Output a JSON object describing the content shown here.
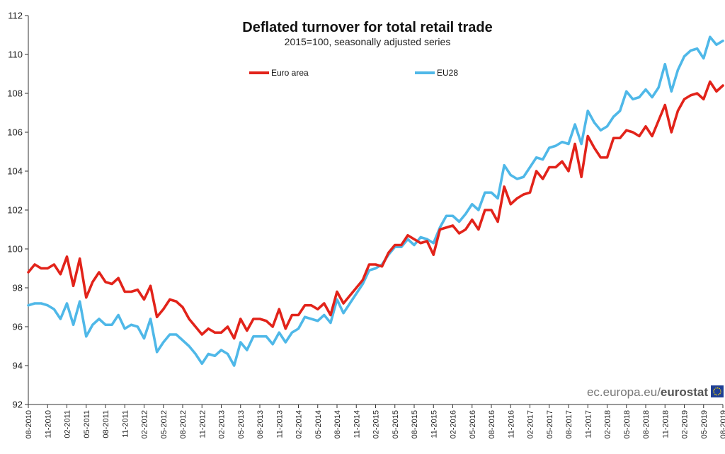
{
  "chart_data": {
    "type": "line",
    "title": "Deflated turnover for total retail trade",
    "subtitle": "2015=100, seasonally adjusted series",
    "ylim": [
      92,
      112
    ],
    "yticks": [
      92,
      94,
      96,
      98,
      100,
      102,
      104,
      106,
      108,
      110,
      112
    ],
    "grid": false,
    "legend_position": "top",
    "x_start": "08-2010",
    "x_end": "08-2019",
    "x_tick_labels": [
      "08-2010",
      "11-2010",
      "02-2011",
      "05-2011",
      "08-2011",
      "11-2011",
      "02-2012",
      "05-2012",
      "08-2012",
      "11-2012",
      "02-2013",
      "05-2013",
      "08-2013",
      "11-2013",
      "02-2014",
      "05-2014",
      "08-2014",
      "11-2014",
      "02-2015",
      "05-2015",
      "08-2015",
      "11-2015",
      "02-2016",
      "05-2016",
      "08-2016",
      "11-2016",
      "02-2017",
      "05-2017",
      "08-2017",
      "11-2017",
      "02-2018",
      "05-2018",
      "08-2018",
      "11-2018",
      "02-2019",
      "05-2019",
      "08-2019"
    ],
    "series": [
      {
        "name": "Euro area",
        "color": "#e2231a",
        "values": [
          98.8,
          99.2,
          99.0,
          99.0,
          99.2,
          98.7,
          99.6,
          98.1,
          99.5,
          97.5,
          98.3,
          98.8,
          98.3,
          98.2,
          98.5,
          97.8,
          97.8,
          97.9,
          97.4,
          98.1,
          96.5,
          96.9,
          97.4,
          97.3,
          97.0,
          96.4,
          96.0,
          95.6,
          95.9,
          95.7,
          95.7,
          96.0,
          95.4,
          96.4,
          95.8,
          96.4,
          96.4,
          96.3,
          96.0,
          96.9,
          95.9,
          96.6,
          96.6,
          97.1,
          97.1,
          96.9,
          97.2,
          96.6,
          97.8,
          97.2,
          97.6,
          98.0,
          98.4,
          99.2,
          99.2,
          99.1,
          99.8,
          100.2,
          100.2,
          100.7,
          100.5,
          100.3,
          100.4,
          99.7,
          101.0,
          101.1,
          101.2,
          100.8,
          101.0,
          101.5,
          101.0,
          102.0,
          102.0,
          101.4,
          103.2,
          102.3,
          102.6,
          102.8,
          102.9,
          104.0,
          103.6,
          104.2,
          104.2,
          104.5,
          104.0,
          105.4,
          103.7,
          105.8,
          105.2,
          104.7,
          104.7,
          105.7,
          105.7,
          106.1,
          106.0,
          105.8,
          106.3,
          105.8,
          106.6,
          107.4,
          106.0,
          107.1,
          107.7,
          107.9,
          108.0,
          107.7,
          108.6,
          108.1,
          108.4
        ]
      },
      {
        "name": "EU28",
        "color": "#4fb8e8",
        "values": [
          97.1,
          97.2,
          97.2,
          97.1,
          96.9,
          96.4,
          97.2,
          96.1,
          97.3,
          95.5,
          96.1,
          96.4,
          96.1,
          96.1,
          96.6,
          95.9,
          96.1,
          96.0,
          95.4,
          96.4,
          94.7,
          95.2,
          95.6,
          95.6,
          95.3,
          95.0,
          94.6,
          94.1,
          94.6,
          94.5,
          94.8,
          94.6,
          94.0,
          95.2,
          94.8,
          95.5,
          95.5,
          95.5,
          95.1,
          95.7,
          95.2,
          95.7,
          95.9,
          96.5,
          96.4,
          96.3,
          96.6,
          96.2,
          97.4,
          96.7,
          97.2,
          97.7,
          98.2,
          98.9,
          99.0,
          99.2,
          99.7,
          100.1,
          100.1,
          100.5,
          100.2,
          100.6,
          100.5,
          100.3,
          101.1,
          101.7,
          101.7,
          101.4,
          101.8,
          102.3,
          102.0,
          102.9,
          102.9,
          102.6,
          104.3,
          103.8,
          103.6,
          103.7,
          104.2,
          104.7,
          104.6,
          105.2,
          105.3,
          105.5,
          105.4,
          106.4,
          105.4,
          107.1,
          106.5,
          106.1,
          106.3,
          106.8,
          107.1,
          108.1,
          107.7,
          107.8,
          108.2,
          107.8,
          108.3,
          109.5,
          108.1,
          109.2,
          109.9,
          110.2,
          110.3,
          109.8,
          110.9,
          110.5,
          110.7
        ]
      }
    ]
  },
  "source": {
    "plain": "ec.europa.eu/",
    "bold": "eurostat"
  },
  "colors": {
    "euro_area": "#e2231a",
    "eu28": "#4fb8e8",
    "eu_flag_blue": "#1f3f95",
    "eu_flag_star": "#ffdd00"
  }
}
